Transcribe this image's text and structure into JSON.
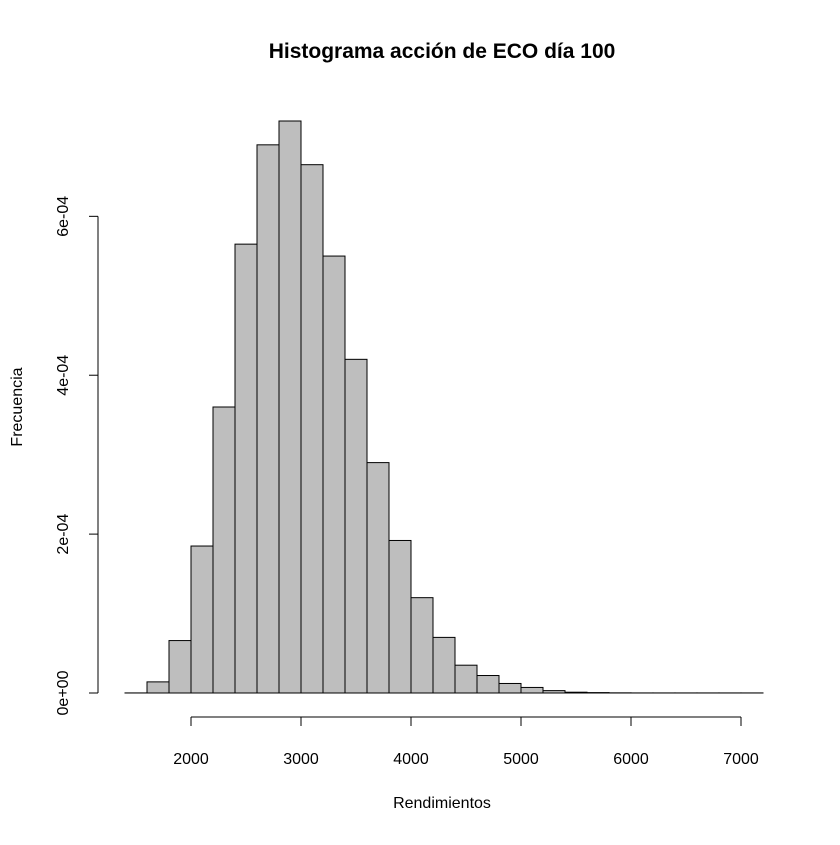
{
  "chart_data": {
    "type": "bar",
    "title": "Histograma acción de ECO día 100",
    "xlabel": "Rendimientos",
    "ylabel": "Frecuencia",
    "bin_width": 200,
    "bin_starts": [
      1400,
      1600,
      1800,
      2000,
      2200,
      2400,
      2600,
      2800,
      3000,
      3200,
      3400,
      3600,
      3800,
      4000,
      4200,
      4400,
      4600,
      4800,
      5000,
      5200,
      5400,
      5600,
      5800,
      6000,
      6200,
      6400,
      6600,
      6800,
      7000
    ],
    "values": [
      1e-07,
      1.4e-05,
      6.6e-05,
      0.000185,
      0.00036,
      0.000565,
      0.00069,
      0.00072,
      0.000665,
      0.00055,
      0.00042,
      0.00029,
      0.000192,
      0.00012,
      7e-05,
      3.5e-05,
      2.2e-05,
      1.2e-05,
      7e-06,
      3e-06,
      1e-06,
      5e-07,
      2e-07,
      1e-07,
      1e-07,
      1e-07,
      1e-07,
      1e-07,
      1e-07
    ],
    "xlim": [
      1400,
      7200
    ],
    "ylim": [
      0,
      0.00072
    ],
    "x_ticks": [
      2000,
      3000,
      4000,
      5000,
      6000,
      7000
    ],
    "x_tick_labels": [
      "2000",
      "3000",
      "4000",
      "5000",
      "6000",
      "7000"
    ],
    "y_ticks": [
      0,
      0.0002,
      0.0004,
      0.0006
    ],
    "y_tick_labels": [
      "0e+00",
      "2e-04",
      "4e-04",
      "6e-04"
    ],
    "bar_fill": "#bebebe",
    "bar_stroke": "#000000",
    "grid": false,
    "legend": "none"
  }
}
